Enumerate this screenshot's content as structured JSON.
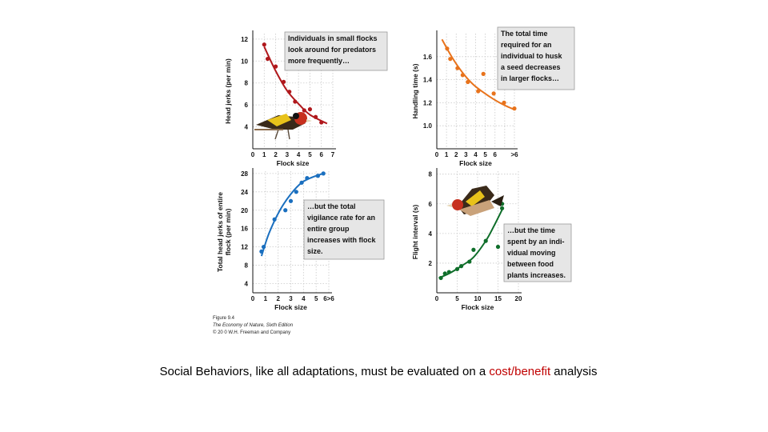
{
  "colors": {
    "red": "#b0181c",
    "orange": "#e8731c",
    "blue": "#1a6fbf",
    "green": "#0f6e2a",
    "callout_bg": "#e6e6e6",
    "highlight": "#c00000"
  },
  "chart_data": [
    {
      "id": "head-jerks",
      "type": "scatter",
      "title": "Individuals in small flocks look around for predators more frequently…",
      "callout_lines": [
        "Individuals in small flocks",
        "look around for predators",
        "more frequently…"
      ],
      "xlabel": "Flock size",
      "ylabel": "Head jerks (per min)",
      "ylabel_lines": [
        "Head jerks (per min)"
      ],
      "xlim": [
        0,
        7
      ],
      "ylim": [
        2,
        12.5
      ],
      "xticks": [
        "0",
        "1",
        "2",
        "3",
        "4",
        "5",
        "6",
        "7"
      ],
      "yticks": [
        "4",
        "6",
        "8",
        "10",
        "12"
      ],
      "x": [
        1,
        1.3,
        2,
        2.7,
        3.2,
        3.7,
        4.5,
        5,
        5.5,
        6
      ],
      "y": [
        11.5,
        10.2,
        9.5,
        8.1,
        7.2,
        6.3,
        5.5,
        5.6,
        4.9,
        4.4
      ],
      "fit": {
        "x": [
          1,
          2,
          3,
          4,
          5,
          6.5
        ],
        "y": [
          11.3,
          9.1,
          7.3,
          6.1,
          5.1,
          4.3
        ]
      },
      "color_key": "red",
      "has_bird": true
    },
    {
      "id": "handling-time",
      "type": "scatter",
      "title": "The total time required for an individual to husk a seed decreases in larger flocks…",
      "callout_lines": [
        "The total time",
        "required for an",
        "individual to husk",
        "a seed decreases",
        "in larger flocks…"
      ],
      "xlabel": "Flock size",
      "ylabel": "Handling time (s)",
      "ylabel_lines": [
        "Handling time (s)"
      ],
      "xlim": [
        0,
        7.5
      ],
      "ylim": [
        0.8,
        1.8
      ],
      "xticks": [
        "0",
        "1",
        "2",
        "3",
        "4",
        "5",
        "6",
        "",
        ">6"
      ],
      "yticks": [
        "1.0",
        "1.2",
        "1.4",
        "1.6"
      ],
      "x": [
        1,
        1.3,
        2,
        2.5,
        3,
        4,
        4.5,
        5.5,
        6.5,
        7.5
      ],
      "y": [
        1.67,
        1.58,
        1.5,
        1.44,
        1.38,
        1.3,
        1.45,
        1.28,
        1.2,
        1.15
      ],
      "fit": {
        "x": [
          0.5,
          1.5,
          2.5,
          3.5,
          4.5,
          5.5,
          6.5,
          7.5
        ],
        "y": [
          1.75,
          1.59,
          1.46,
          1.36,
          1.29,
          1.23,
          1.18,
          1.14
        ]
      },
      "color_key": "orange",
      "has_bird": false
    },
    {
      "id": "flock-vigilance",
      "type": "scatter",
      "title": "…but the total vigilance rate for an entire group increases with flock size.",
      "callout_lines": [
        "…but the total",
        "vigilance rate for an",
        "entire group",
        "increases with flock",
        "size."
      ],
      "xlabel": "Flock size",
      "ylabel": "Total head jerks of entire flock (per min)",
      "ylabel_lines": [
        "Total head jerks of entire",
        "flock (per min)"
      ],
      "xlim": [
        0,
        7
      ],
      "ylim": [
        2,
        28.5
      ],
      "xticks": [
        "0",
        "1",
        "2",
        "3",
        "4",
        "5",
        "6>6"
      ],
      "yticks": [
        "4",
        "8",
        "12",
        "16",
        "20",
        "24",
        "28"
      ],
      "x": [
        0.8,
        1,
        2,
        3,
        3.5,
        4,
        4.5,
        5,
        6,
        6.5
      ],
      "y": [
        11,
        12,
        18,
        20,
        22,
        24,
        26,
        27,
        27.5,
        28
      ],
      "fit": {
        "x": [
          0.8,
          1.5,
          2.5,
          3.5,
          4.5,
          5.5,
          6.5
        ],
        "y": [
          10,
          15,
          20,
          23.5,
          26,
          27.2,
          28
        ]
      },
      "color_key": "blue",
      "has_bird": false
    },
    {
      "id": "flight-interval",
      "type": "scatter",
      "title": "…but the time spent by an individual moving between food plants increases.",
      "callout_lines": [
        "…but the time",
        "spent by an indi-",
        "vidual moving",
        "between food",
        "plants increases."
      ],
      "xlabel": "Flock size",
      "ylabel": "Flight interval (s)",
      "ylabel_lines": [
        "Flight interval (s)"
      ],
      "xlim": [
        0,
        20
      ],
      "ylim": [
        0,
        8.2
      ],
      "xticks": [
        "0",
        "5",
        "10",
        "15",
        "20"
      ],
      "yticks": [
        "2",
        "4",
        "6",
        "8"
      ],
      "x": [
        1,
        2,
        3,
        5,
        6,
        8,
        9,
        12,
        15,
        16,
        16
      ],
      "y": [
        1,
        1.3,
        1.4,
        1.6,
        1.8,
        2.1,
        2.9,
        3.5,
        3.1,
        6,
        5.7
      ],
      "fit": {
        "x": [
          0.5,
          3,
          6,
          9,
          12,
          14,
          16
        ],
        "y": [
          1,
          1.3,
          1.8,
          2.4,
          3.5,
          4.5,
          5.6
        ]
      },
      "color_key": "green",
      "has_bird": true
    }
  ],
  "figure_credit": {
    "line1": "Figure 9.4",
    "line2": "The Economy of Nature, Sixth Edition",
    "line3": "© 20 0 W.H. Freeman and Company"
  },
  "caption": {
    "before": "Social Behaviors, like all adaptations, must be evaluated on a ",
    "highlight": "cost/benefit",
    "after": " analysis"
  }
}
